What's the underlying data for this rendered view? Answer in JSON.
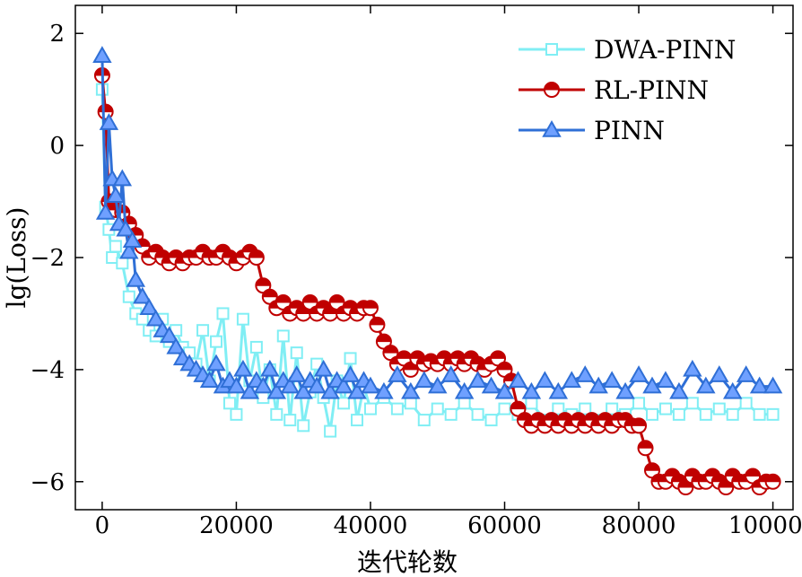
{
  "chart_data": {
    "type": "line",
    "title": "",
    "xlabel": "迭代轮数",
    "ylabel": "lg(Loss)",
    "xlim": [
      -4000,
      103000
    ],
    "ylim": [
      -6.5,
      2.5
    ],
    "x_ticks": [
      0,
      20000,
      40000,
      60000,
      80000,
      100000
    ],
    "x_tick_labels": [
      "0",
      "20000",
      "40000",
      "60000",
      "80000",
      "100000"
    ],
    "y_ticks": [
      2,
      0,
      -2,
      -4,
      -6
    ],
    "y_tick_labels": [
      "2",
      "0",
      "−2",
      "−4",
      "−6"
    ],
    "grid": false,
    "legend_position": "top-right",
    "series": [
      {
        "name": "DWA-PINN",
        "color": "#80eef4",
        "marker": "square",
        "points": [
          [
            0,
            1.0
          ],
          [
            500,
            -1.1
          ],
          [
            1000,
            -1.5
          ],
          [
            1500,
            -2.0
          ],
          [
            2000,
            -1.8
          ],
          [
            3000,
            -2.1
          ],
          [
            4000,
            -2.7
          ],
          [
            5000,
            -3.0
          ],
          [
            6000,
            -3.1
          ],
          [
            7000,
            -3.3
          ],
          [
            8000,
            -3.4
          ],
          [
            9000,
            -3.1
          ],
          [
            10000,
            -3.5
          ],
          [
            11000,
            -3.3
          ],
          [
            12000,
            -3.6
          ],
          [
            13000,
            -3.7
          ],
          [
            14000,
            -3.9
          ],
          [
            15000,
            -3.3
          ],
          [
            16000,
            -4.2
          ],
          [
            17000,
            -3.5
          ],
          [
            18000,
            -3.0
          ],
          [
            19000,
            -4.6
          ],
          [
            20000,
            -4.8
          ],
          [
            21000,
            -3.1
          ],
          [
            22000,
            -4.2
          ],
          [
            23000,
            -3.6
          ],
          [
            24000,
            -4.5
          ],
          [
            25000,
            -4.0
          ],
          [
            26000,
            -4.8
          ],
          [
            27000,
            -3.4
          ],
          [
            28000,
            -4.9
          ],
          [
            29000,
            -3.7
          ],
          [
            30000,
            -5.0
          ],
          [
            31000,
            -4.4
          ],
          [
            32000,
            -3.9
          ],
          [
            33000,
            -4.5
          ],
          [
            34000,
            -5.1
          ],
          [
            35000,
            -4.2
          ],
          [
            36000,
            -4.6
          ],
          [
            37000,
            -3.8
          ],
          [
            38000,
            -4.9
          ],
          [
            39000,
            -4.3
          ],
          [
            40000,
            -4.7
          ],
          [
            42000,
            -4.5
          ],
          [
            44000,
            -4.7
          ],
          [
            46000,
            -4.6
          ],
          [
            48000,
            -4.9
          ],
          [
            50000,
            -4.7
          ],
          [
            52000,
            -4.8
          ],
          [
            54000,
            -4.6
          ],
          [
            56000,
            -4.8
          ],
          [
            58000,
            -4.9
          ],
          [
            60000,
            -4.7
          ],
          [
            62000,
            -4.8
          ],
          [
            64000,
            -4.6
          ],
          [
            66000,
            -4.9
          ],
          [
            68000,
            -4.7
          ],
          [
            70000,
            -4.8
          ],
          [
            72000,
            -4.7
          ],
          [
            74000,
            -4.9
          ],
          [
            76000,
            -4.7
          ],
          [
            78000,
            -4.8
          ],
          [
            80000,
            -4.6
          ],
          [
            82000,
            -4.8
          ],
          [
            84000,
            -4.7
          ],
          [
            86000,
            -4.8
          ],
          [
            88000,
            -4.6
          ],
          [
            90000,
            -4.8
          ],
          [
            92000,
            -4.7
          ],
          [
            94000,
            -4.8
          ],
          [
            96000,
            -4.6
          ],
          [
            98000,
            -4.8
          ],
          [
            100000,
            -4.8
          ]
        ]
      },
      {
        "name": "RL-PINN",
        "color": "#c00000",
        "marker": "half-circle",
        "points": [
          [
            0,
            1.25
          ],
          [
            500,
            0.6
          ],
          [
            1000,
            -1.0
          ],
          [
            1500,
            -1.1
          ],
          [
            2000,
            -1.15
          ],
          [
            3000,
            -1.2
          ],
          [
            4000,
            -1.4
          ],
          [
            5000,
            -1.6
          ],
          [
            6000,
            -1.8
          ],
          [
            7000,
            -2.0
          ],
          [
            8000,
            -1.9
          ],
          [
            9000,
            -2.0
          ],
          [
            10000,
            -2.1
          ],
          [
            11000,
            -2.0
          ],
          [
            12000,
            -2.1
          ],
          [
            13000,
            -2.0
          ],
          [
            14000,
            -2.0
          ],
          [
            15000,
            -1.9
          ],
          [
            16000,
            -2.0
          ],
          [
            17000,
            -2.0
          ],
          [
            18000,
            -1.9
          ],
          [
            19000,
            -2.0
          ],
          [
            20000,
            -2.1
          ],
          [
            21000,
            -2.0
          ],
          [
            22000,
            -1.9
          ],
          [
            23000,
            -2.0
          ],
          [
            24000,
            -2.5
          ],
          [
            25000,
            -2.7
          ],
          [
            26000,
            -2.9
          ],
          [
            27000,
            -2.8
          ],
          [
            28000,
            -3.0
          ],
          [
            29000,
            -2.9
          ],
          [
            30000,
            -3.0
          ],
          [
            31000,
            -2.8
          ],
          [
            32000,
            -3.0
          ],
          [
            33000,
            -2.9
          ],
          [
            34000,
            -3.0
          ],
          [
            35000,
            -2.8
          ],
          [
            36000,
            -3.0
          ],
          [
            37000,
            -2.9
          ],
          [
            38000,
            -3.0
          ],
          [
            39000,
            -2.9
          ],
          [
            40000,
            -2.9
          ],
          [
            41000,
            -3.2
          ],
          [
            42000,
            -3.5
          ],
          [
            43000,
            -3.7
          ],
          [
            44000,
            -3.9
          ],
          [
            45000,
            -3.8
          ],
          [
            46000,
            -4.0
          ],
          [
            47000,
            -3.8
          ],
          [
            48000,
            -3.9
          ],
          [
            49000,
            -3.85
          ],
          [
            50000,
            -3.9
          ],
          [
            51000,
            -3.8
          ],
          [
            52000,
            -3.9
          ],
          [
            53000,
            -3.8
          ],
          [
            54000,
            -3.9
          ],
          [
            55000,
            -3.8
          ],
          [
            56000,
            -3.9
          ],
          [
            57000,
            -4.0
          ],
          [
            58000,
            -3.9
          ],
          [
            59000,
            -3.8
          ],
          [
            60000,
            -4.0
          ],
          [
            61000,
            -4.2
          ],
          [
            62000,
            -4.7
          ],
          [
            63000,
            -4.9
          ],
          [
            64000,
            -5.0
          ],
          [
            65000,
            -4.9
          ],
          [
            66000,
            -5.0
          ],
          [
            67000,
            -4.9
          ],
          [
            68000,
            -5.0
          ],
          [
            69000,
            -4.9
          ],
          [
            70000,
            -5.0
          ],
          [
            71000,
            -4.9
          ],
          [
            72000,
            -5.0
          ],
          [
            73000,
            -4.9
          ],
          [
            74000,
            -5.0
          ],
          [
            75000,
            -4.9
          ],
          [
            76000,
            -5.0
          ],
          [
            77000,
            -4.9
          ],
          [
            78000,
            -4.9
          ],
          [
            79000,
            -5.0
          ],
          [
            80000,
            -5.0
          ],
          [
            81000,
            -5.4
          ],
          [
            82000,
            -5.8
          ],
          [
            83000,
            -6.0
          ],
          [
            84000,
            -6.0
          ],
          [
            85000,
            -5.9
          ],
          [
            86000,
            -6.0
          ],
          [
            87000,
            -6.1
          ],
          [
            88000,
            -5.9
          ],
          [
            89000,
            -6.0
          ],
          [
            90000,
            -6.0
          ],
          [
            91000,
            -5.9
          ],
          [
            92000,
            -6.0
          ],
          [
            93000,
            -6.1
          ],
          [
            94000,
            -5.9
          ],
          [
            95000,
            -6.0
          ],
          [
            96000,
            -6.0
          ],
          [
            97000,
            -5.9
          ],
          [
            98000,
            -6.1
          ],
          [
            99000,
            -6.0
          ],
          [
            100000,
            -6.0
          ]
        ]
      },
      {
        "name": "PINN",
        "color": "#2f6fd6",
        "marker": "triangle",
        "points": [
          [
            0,
            1.6
          ],
          [
            500,
            -1.2
          ],
          [
            1000,
            0.4
          ],
          [
            1500,
            -0.6
          ],
          [
            2000,
            -0.9
          ],
          [
            2500,
            -1.4
          ],
          [
            3000,
            -0.6
          ],
          [
            3500,
            -1.5
          ],
          [
            4000,
            -1.9
          ],
          [
            4500,
            -1.7
          ],
          [
            5000,
            -2.4
          ],
          [
            6000,
            -2.7
          ],
          [
            7000,
            -2.9
          ],
          [
            8000,
            -3.1
          ],
          [
            9000,
            -3.3
          ],
          [
            10000,
            -3.4
          ],
          [
            11000,
            -3.6
          ],
          [
            12000,
            -3.8
          ],
          [
            13000,
            -3.9
          ],
          [
            14000,
            -4.0
          ],
          [
            15000,
            -4.1
          ],
          [
            16000,
            -4.2
          ],
          [
            17000,
            -3.9
          ],
          [
            18000,
            -4.3
          ],
          [
            19000,
            -4.2
          ],
          [
            20000,
            -4.3
          ],
          [
            21000,
            -4.0
          ],
          [
            22000,
            -4.4
          ],
          [
            23000,
            -4.2
          ],
          [
            24000,
            -4.3
          ],
          [
            25000,
            -4.0
          ],
          [
            26000,
            -4.4
          ],
          [
            27000,
            -4.2
          ],
          [
            28000,
            -4.3
          ],
          [
            29000,
            -4.1
          ],
          [
            30000,
            -4.4
          ],
          [
            31000,
            -4.2
          ],
          [
            32000,
            -4.3
          ],
          [
            33000,
            -4.0
          ],
          [
            34000,
            -4.4
          ],
          [
            35000,
            -4.2
          ],
          [
            36000,
            -4.3
          ],
          [
            37000,
            -4.1
          ],
          [
            38000,
            -4.4
          ],
          [
            39000,
            -4.2
          ],
          [
            40000,
            -4.3
          ],
          [
            42000,
            -4.4
          ],
          [
            44000,
            -4.1
          ],
          [
            46000,
            -4.4
          ],
          [
            48000,
            -4.2
          ],
          [
            50000,
            -4.3
          ],
          [
            52000,
            -4.1
          ],
          [
            54000,
            -4.4
          ],
          [
            56000,
            -4.2
          ],
          [
            58000,
            -4.3
          ],
          [
            60000,
            -4.4
          ],
          [
            62000,
            -4.2
          ],
          [
            64000,
            -4.4
          ],
          [
            66000,
            -4.2
          ],
          [
            68000,
            -4.4
          ],
          [
            70000,
            -4.2
          ],
          [
            72000,
            -4.1
          ],
          [
            74000,
            -4.3
          ],
          [
            76000,
            -4.2
          ],
          [
            78000,
            -4.4
          ],
          [
            80000,
            -4.1
          ],
          [
            82000,
            -4.3
          ],
          [
            84000,
            -4.2
          ],
          [
            86000,
            -4.4
          ],
          [
            88000,
            -4.0
          ],
          [
            90000,
            -4.3
          ],
          [
            92000,
            -4.1
          ],
          [
            94000,
            -4.4
          ],
          [
            96000,
            -4.1
          ],
          [
            98000,
            -4.3
          ],
          [
            100000,
            -4.3
          ]
        ]
      }
    ]
  }
}
